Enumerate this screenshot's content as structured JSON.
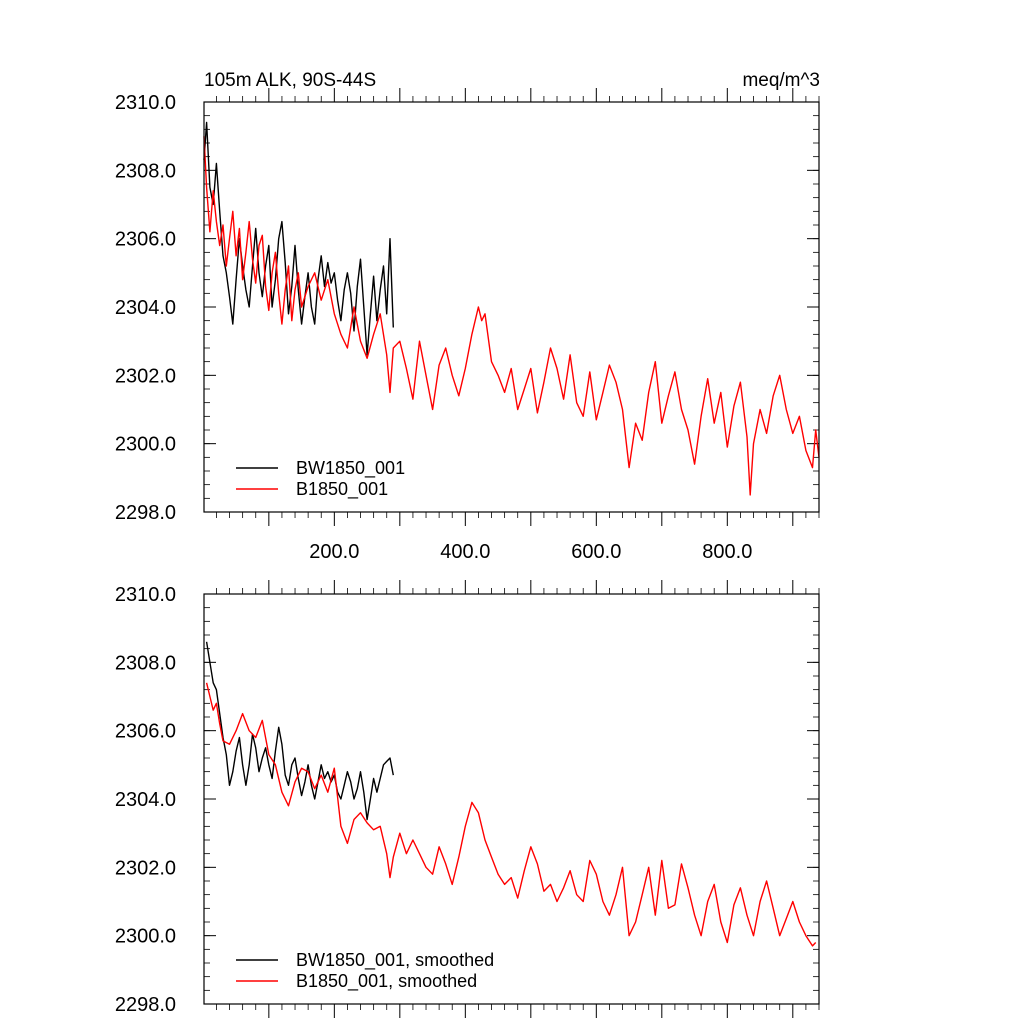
{
  "chart_data": [
    {
      "type": "line",
      "title": "105m ALK, 90S-44S",
      "units": "meq/m^3",
      "xlim": [
        1,
        940
      ],
      "ylim": [
        2298,
        2310
      ],
      "y_ticks": [
        2298,
        2300,
        2302,
        2304,
        2306,
        2308,
        2310
      ],
      "y_tick_labels": [
        "2298.0",
        "2300.0",
        "2302.0",
        "2304.0",
        "2306.0",
        "2308.0",
        "2310.0"
      ],
      "x_ticks": [
        200,
        400,
        600,
        800
      ],
      "x_tick_labels": [
        "200.0",
        "400.0",
        "600.0",
        "800.0"
      ],
      "legend_position": "bottom-left",
      "series": [
        {
          "name": "BW1850_001",
          "color": "#000000",
          "x": [
            1,
            5,
            10,
            15,
            20,
            25,
            30,
            35,
            40,
            45,
            50,
            55,
            60,
            65,
            70,
            75,
            80,
            85,
            90,
            95,
            100,
            105,
            110,
            115,
            120,
            125,
            130,
            135,
            140,
            145,
            150,
            155,
            160,
            165,
            170,
            175,
            180,
            185,
            190,
            195,
            200,
            205,
            210,
            215,
            220,
            225,
            230,
            235,
            240,
            245,
            250,
            255,
            260,
            265,
            270,
            275,
            280,
            285,
            290
          ],
          "y": [
            2308.3,
            2309.4,
            2307.5,
            2307.0,
            2308.2,
            2306.8,
            2305.5,
            2305.0,
            2304.3,
            2303.5,
            2304.8,
            2306.0,
            2305.2,
            2304.5,
            2304.0,
            2305.2,
            2306.3,
            2305.0,
            2304.3,
            2305.2,
            2305.8,
            2304.0,
            2304.8,
            2306.0,
            2306.5,
            2305.3,
            2303.8,
            2304.6,
            2305.8,
            2304.5,
            2303.5,
            2304.3,
            2305.0,
            2304.0,
            2303.5,
            2304.8,
            2305.5,
            2304.6,
            2305.3,
            2304.7,
            2305.0,
            2304.2,
            2303.6,
            2304.5,
            2305.0,
            2304.4,
            2303.3,
            2304.6,
            2305.4,
            2304.0,
            2302.6,
            2303.8,
            2304.9,
            2303.6,
            2304.5,
            2305.2,
            2303.8,
            2306.0,
            2303.4
          ]
        },
        {
          "name": "B1850_001",
          "color": "#ff0000",
          "x": [
            1,
            5,
            10,
            15,
            20,
            25,
            30,
            35,
            40,
            45,
            50,
            55,
            60,
            65,
            70,
            75,
            80,
            85,
            90,
            95,
            100,
            105,
            110,
            115,
            120,
            125,
            130,
            135,
            140,
            145,
            150,
            160,
            170,
            180,
            190,
            200,
            210,
            220,
            230,
            240,
            250,
            260,
            270,
            280,
            285,
            290,
            300,
            310,
            320,
            330,
            340,
            350,
            360,
            370,
            380,
            390,
            400,
            410,
            420,
            425,
            430,
            440,
            450,
            460,
            470,
            480,
            490,
            500,
            510,
            520,
            530,
            540,
            550,
            560,
            570,
            580,
            590,
            600,
            610,
            620,
            630,
            640,
            650,
            660,
            670,
            680,
            690,
            700,
            710,
            720,
            730,
            740,
            750,
            760,
            770,
            780,
            790,
            800,
            810,
            820,
            830,
            835,
            840,
            850,
            860,
            870,
            880,
            890,
            900,
            910,
            920,
            930,
            935,
            940
          ],
          "y": [
            2309.0,
            2307.5,
            2306.2,
            2307.4,
            2306.5,
            2305.8,
            2306.4,
            2305.2,
            2306.0,
            2306.8,
            2305.5,
            2306.3,
            2304.8,
            2305.6,
            2306.5,
            2305.4,
            2304.7,
            2305.8,
            2306.1,
            2304.6,
            2303.9,
            2305.0,
            2305.6,
            2304.4,
            2303.5,
            2304.5,
            2305.2,
            2303.6,
            2304.5,
            2305.0,
            2304.0,
            2304.6,
            2305.0,
            2304.2,
            2304.8,
            2303.8,
            2303.2,
            2302.8,
            2304.0,
            2303.0,
            2302.5,
            2303.2,
            2303.8,
            2302.6,
            2301.5,
            2302.8,
            2303.0,
            2302.2,
            2301.3,
            2303.0,
            2302.0,
            2301.0,
            2302.3,
            2302.8,
            2302.0,
            2301.4,
            2302.2,
            2303.2,
            2304.0,
            2303.6,
            2303.8,
            2302.4,
            2302.0,
            2301.5,
            2302.2,
            2301.0,
            2301.6,
            2302.2,
            2300.9,
            2301.8,
            2302.8,
            2302.2,
            2301.3,
            2302.6,
            2301.2,
            2300.8,
            2302.1,
            2300.7,
            2301.5,
            2302.3,
            2301.8,
            2301.0,
            2299.3,
            2300.6,
            2300.1,
            2301.5,
            2302.4,
            2300.6,
            2301.4,
            2302.1,
            2301.0,
            2300.4,
            2299.4,
            2300.8,
            2301.9,
            2300.6,
            2301.5,
            2299.9,
            2301.1,
            2301.8,
            2300.2,
            2298.5,
            2300.0,
            2301.0,
            2300.3,
            2301.4,
            2302.0,
            2301.0,
            2300.3,
            2300.8,
            2299.8,
            2299.3,
            2300.4,
            2299.6
          ]
        }
      ]
    },
    {
      "type": "line",
      "xlim": [
        1,
        940
      ],
      "ylim": [
        2298,
        2310
      ],
      "y_ticks": [
        2298,
        2300,
        2302,
        2304,
        2306,
        2308,
        2310
      ],
      "y_tick_labels": [
        "2298.0",
        "2300.0",
        "2302.0",
        "2304.0",
        "2306.0",
        "2308.0",
        "2310.0"
      ],
      "legend_position": "bottom-left",
      "series": [
        {
          "name": "BW1850_001, smoothed",
          "color": "#000000",
          "x": [
            5,
            10,
            15,
            20,
            25,
            30,
            35,
            40,
            45,
            50,
            55,
            60,
            65,
            70,
            75,
            80,
            85,
            90,
            95,
            100,
            105,
            110,
            115,
            120,
            125,
            130,
            135,
            140,
            145,
            150,
            155,
            160,
            165,
            170,
            175,
            180,
            185,
            190,
            195,
            200,
            205,
            210,
            215,
            220,
            225,
            230,
            235,
            240,
            245,
            250,
            255,
            260,
            265,
            270,
            275,
            280,
            285,
            290
          ],
          "y": [
            2308.6,
            2308.0,
            2307.4,
            2307.2,
            2306.5,
            2305.8,
            2305.3,
            2304.4,
            2304.8,
            2305.4,
            2305.8,
            2305.0,
            2304.4,
            2305.0,
            2305.9,
            2305.5,
            2304.8,
            2305.2,
            2305.5,
            2305.0,
            2304.6,
            2305.4,
            2306.1,
            2305.6,
            2304.7,
            2304.4,
            2305.0,
            2305.2,
            2304.6,
            2304.1,
            2304.5,
            2305.0,
            2304.4,
            2304.0,
            2304.5,
            2305.0,
            2304.6,
            2304.8,
            2304.5,
            2304.7,
            2304.2,
            2304.0,
            2304.4,
            2304.8,
            2304.5,
            2304.0,
            2304.3,
            2304.8,
            2304.2,
            2303.4,
            2304.0,
            2304.6,
            2304.2,
            2304.6,
            2305.0,
            2305.1,
            2305.2,
            2304.7
          ]
        },
        {
          "name": "B1850_001, smoothed",
          "color": "#ff0000",
          "x": [
            5,
            10,
            15,
            20,
            25,
            30,
            40,
            50,
            60,
            70,
            80,
            90,
            100,
            110,
            120,
            130,
            140,
            150,
            160,
            170,
            180,
            190,
            200,
            210,
            220,
            230,
            240,
            250,
            260,
            270,
            280,
            285,
            290,
            300,
            310,
            320,
            330,
            340,
            350,
            360,
            370,
            380,
            390,
            400,
            410,
            420,
            430,
            440,
            450,
            460,
            470,
            480,
            490,
            500,
            510,
            520,
            530,
            540,
            550,
            560,
            570,
            580,
            590,
            600,
            610,
            620,
            630,
            640,
            650,
            660,
            670,
            680,
            690,
            700,
            710,
            720,
            730,
            740,
            750,
            760,
            770,
            780,
            790,
            800,
            810,
            820,
            830,
            840,
            850,
            860,
            870,
            880,
            890,
            900,
            910,
            920,
            930,
            935
          ],
          "y": [
            2307.4,
            2307.0,
            2306.6,
            2306.8,
            2306.2,
            2305.7,
            2305.6,
            2306.0,
            2306.5,
            2306.0,
            2305.8,
            2306.3,
            2305.3,
            2305.0,
            2304.2,
            2303.8,
            2304.5,
            2304.9,
            2304.8,
            2304.3,
            2304.7,
            2304.2,
            2304.9,
            2303.2,
            2302.7,
            2303.4,
            2303.6,
            2303.3,
            2303.1,
            2303.2,
            2302.4,
            2301.7,
            2302.3,
            2303.0,
            2302.4,
            2302.8,
            2302.4,
            2302.0,
            2301.8,
            2302.6,
            2302.1,
            2301.5,
            2302.3,
            2303.2,
            2303.9,
            2303.6,
            2302.8,
            2302.3,
            2301.8,
            2301.5,
            2301.7,
            2301.1,
            2301.9,
            2302.6,
            2302.1,
            2301.3,
            2301.5,
            2301.0,
            2301.4,
            2301.9,
            2301.2,
            2301.0,
            2302.2,
            2301.8,
            2301.0,
            2300.6,
            2301.2,
            2302.0,
            2300.0,
            2300.4,
            2301.2,
            2302.0,
            2300.6,
            2302.2,
            2300.8,
            2300.9,
            2302.1,
            2301.4,
            2300.6,
            2300.0,
            2301.0,
            2301.5,
            2300.4,
            2299.8,
            2300.9,
            2301.4,
            2300.6,
            2300.0,
            2301.0,
            2301.6,
            2300.8,
            2300.0,
            2300.5,
            2301.0,
            2300.4,
            2300.0,
            2299.7,
            2299.8
          ]
        }
      ]
    }
  ]
}
